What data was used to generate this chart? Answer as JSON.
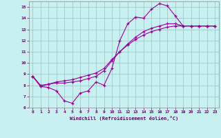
{
  "xlabel": "Windchill (Refroidissement éolien,°C)",
  "bg_color": "#c8f0f0",
  "grid_color": "#a0c8c8",
  "line_color": "#990099",
  "xlim": [
    -0.5,
    23.5
  ],
  "ylim": [
    6,
    15.5
  ],
  "xticks": [
    0,
    1,
    2,
    3,
    4,
    5,
    6,
    7,
    8,
    9,
    10,
    11,
    12,
    13,
    14,
    15,
    16,
    17,
    18,
    19,
    20,
    21,
    22,
    23
  ],
  "yticks": [
    6,
    7,
    8,
    9,
    10,
    11,
    12,
    13,
    14,
    15
  ],
  "curve1_x": [
    0,
    1,
    2,
    3,
    4,
    5,
    6,
    7,
    8,
    9,
    10,
    11,
    12,
    13,
    14,
    15,
    16,
    17,
    18,
    19,
    20,
    21,
    22,
    23
  ],
  "curve1_y": [
    8.8,
    7.9,
    7.8,
    7.5,
    6.6,
    6.4,
    7.3,
    7.5,
    8.3,
    8.0,
    9.5,
    12.0,
    13.5,
    14.1,
    14.0,
    14.8,
    15.3,
    15.1,
    14.2,
    13.3,
    13.3,
    13.3,
    13.3,
    13.3
  ],
  "curve2_x": [
    0,
    1,
    2,
    3,
    4,
    5,
    6,
    7,
    8,
    9,
    10,
    11,
    12,
    13,
    14,
    15,
    16,
    17,
    18,
    19,
    20,
    21,
    22,
    23
  ],
  "curve2_y": [
    8.8,
    7.9,
    8.1,
    8.2,
    8.2,
    8.3,
    8.4,
    8.6,
    8.8,
    9.3,
    10.2,
    11.0,
    11.7,
    12.3,
    12.8,
    13.1,
    13.3,
    13.5,
    13.5,
    13.3,
    13.3,
    13.3,
    13.3,
    13.3
  ],
  "curve3_x": [
    0,
    1,
    2,
    3,
    4,
    5,
    6,
    7,
    8,
    9,
    10,
    11,
    12,
    13,
    14,
    15,
    16,
    17,
    18,
    19,
    20,
    21,
    22,
    23
  ],
  "curve3_y": [
    8.8,
    8.0,
    8.1,
    8.3,
    8.4,
    8.5,
    8.7,
    8.9,
    9.1,
    9.5,
    10.3,
    11.0,
    11.6,
    12.1,
    12.5,
    12.8,
    13.0,
    13.2,
    13.3,
    13.3,
    13.3,
    13.3,
    13.3,
    13.3
  ]
}
